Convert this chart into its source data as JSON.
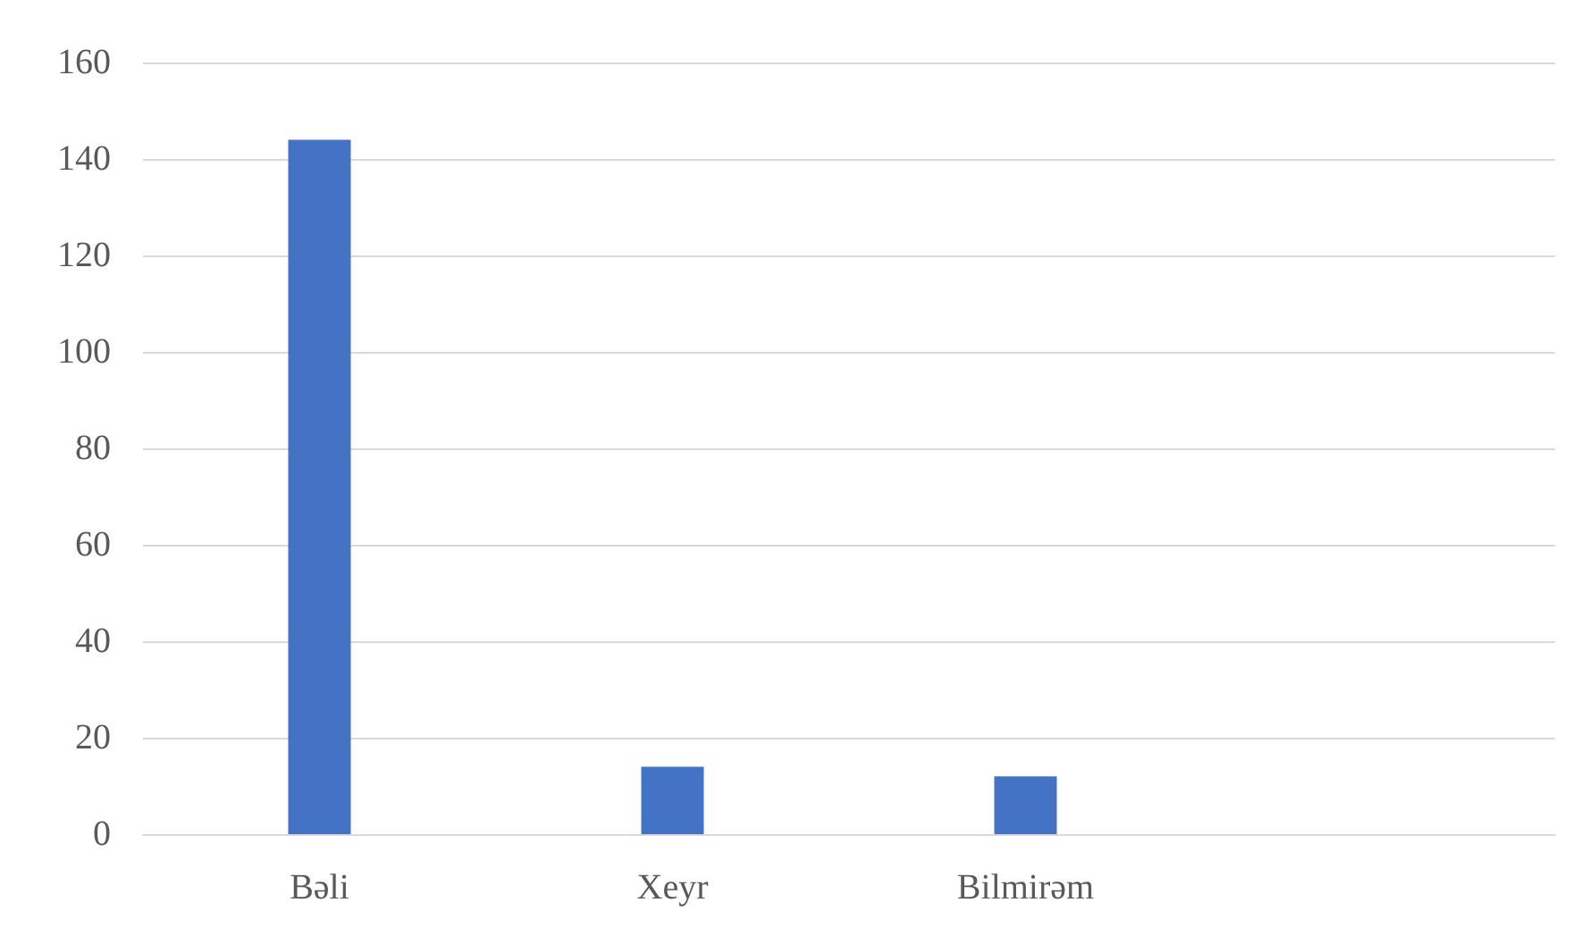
{
  "chart_data": {
    "type": "bar",
    "categories": [
      "Bəli",
      "Xeyr",
      "Bilmirəm",
      null
    ],
    "values": [
      144,
      14,
      12,
      null
    ],
    "color": "#4472c4",
    "ylim": [
      0,
      160
    ],
    "yticks": [
      0,
      20,
      40,
      60,
      80,
      100,
      120,
      140,
      160
    ],
    "grid": "y"
  }
}
